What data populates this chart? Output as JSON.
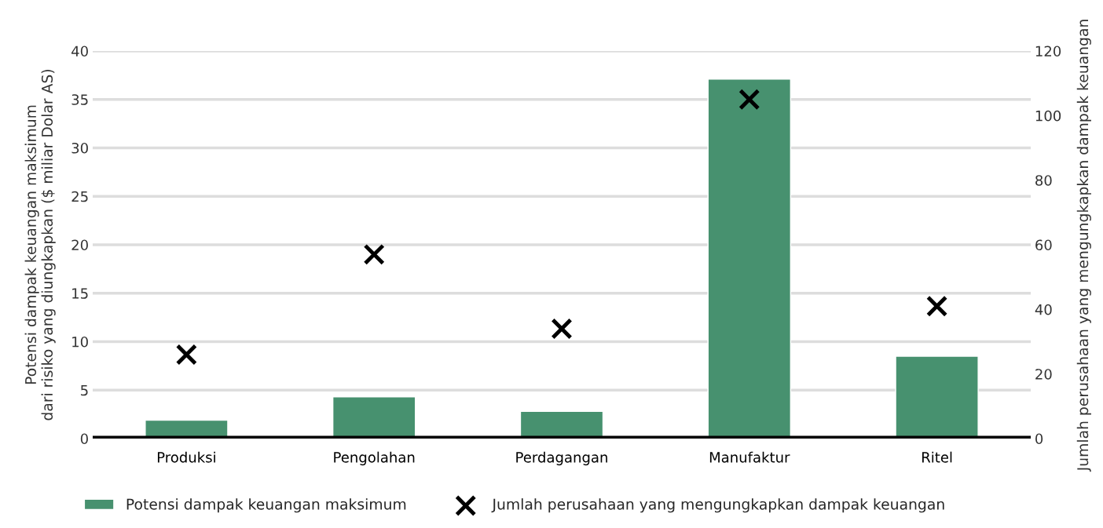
{
  "chart_data": {
    "type": "bar",
    "categories": [
      "Produksi",
      "Pengolahan",
      "Perdagangan",
      "Manufaktur",
      "Ritel"
    ],
    "ylabel": "Potensi dampak keuangan maksimum\ndari risiko yang diungkapkan ($ miliar Dolar AS)",
    "y2label": "Jumlah perusahaan yang mengungkapkan dampak keuangan",
    "series": [
      {
        "name": "Potensi dampak keuangan maksimum",
        "color": "#47916f",
        "values": [
          1.9,
          4.3,
          2.8,
          37.1,
          8.5
        ]
      },
      {
        "name": "Jumlah perusahaan yang mengungkapkan dampak keuangan",
        "type": "scatter",
        "axis": "y2",
        "marker": "cross",
        "color": "#000000",
        "values": [
          26,
          57,
          34,
          105,
          41
        ]
      }
    ],
    "ylim": [
      0,
      40
    ],
    "yticks": [
      0,
      5,
      10,
      15,
      20,
      25,
      30,
      35,
      40
    ],
    "y2lim": [
      0,
      120
    ],
    "y2ticks": [
      0,
      20,
      40,
      60,
      80,
      100,
      120
    ],
    "grid": "y",
    "legend": "bottom"
  }
}
